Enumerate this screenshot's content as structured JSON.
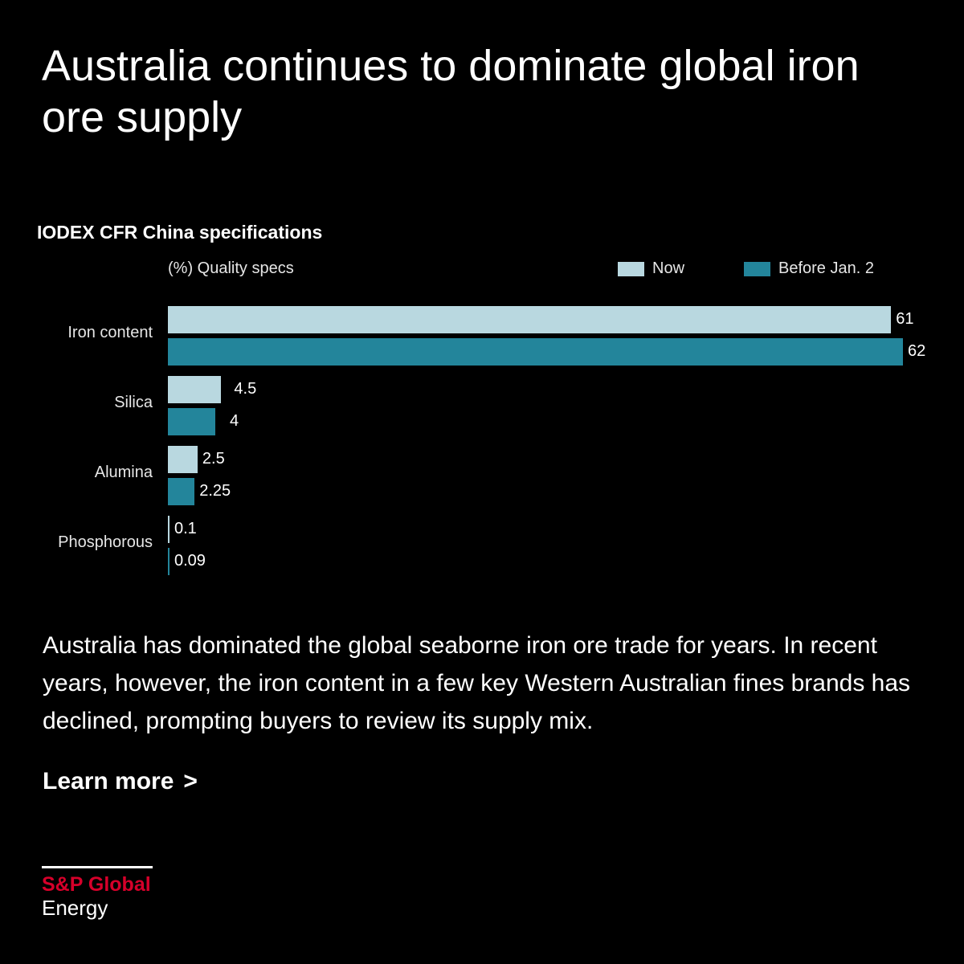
{
  "title": "Australia continues to dominate global iron ore supply",
  "chart_data": {
    "type": "bar",
    "orientation": "horizontal",
    "title": "IODEX CFR China specifications",
    "ylabel": "(%) Quality specs",
    "categories": [
      "Iron content",
      "Silica",
      "Alumina",
      "Phosphorous"
    ],
    "series": [
      {
        "name": "Now",
        "color": "#b9d8e0",
        "values": [
          61,
          4.5,
          2.5,
          0.1
        ],
        "labels": [
          "61",
          "4.5",
          "2.5",
          "0.1"
        ]
      },
      {
        "name": "Before Jan. 2",
        "color": "#23859b",
        "values": [
          62,
          4,
          2.25,
          0.09
        ],
        "labels": [
          "62",
          "4",
          "2.25",
          "0.09"
        ]
      }
    ],
    "xlim": [
      0,
      62
    ],
    "legend": "top-right",
    "grid": false
  },
  "body_text": "Australia has dominated the global seaborne iron ore trade for years. In recent years, however, the iron content in a few key Western Australian fines brands has declined, prompting buyers to review its supply mix.",
  "learn_more": {
    "label": "Learn more",
    "chevron": ">"
  },
  "logo": {
    "brand": "S&P Global",
    "sub": "Energy",
    "brand_color": "#d6002a"
  }
}
